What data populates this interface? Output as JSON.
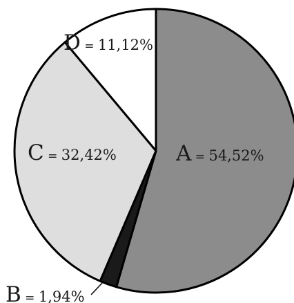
{
  "chart_data": {
    "type": "pie",
    "title": "",
    "slices": [
      {
        "label": "A",
        "value": 54.52,
        "display": "54,52%",
        "color": "#8c8c8c"
      },
      {
        "label": "B",
        "value": 1.94,
        "display": "1,94%",
        "color": "#1a1a1a"
      },
      {
        "label": "C",
        "value": 32.42,
        "display": "32,42%",
        "color": "#dedede"
      },
      {
        "label": "D",
        "value": 11.12,
        "display": "11,12%",
        "color": "#ffffff"
      }
    ],
    "start_angle_deg": 0,
    "direction": "clockwise",
    "equals_sign": "="
  }
}
